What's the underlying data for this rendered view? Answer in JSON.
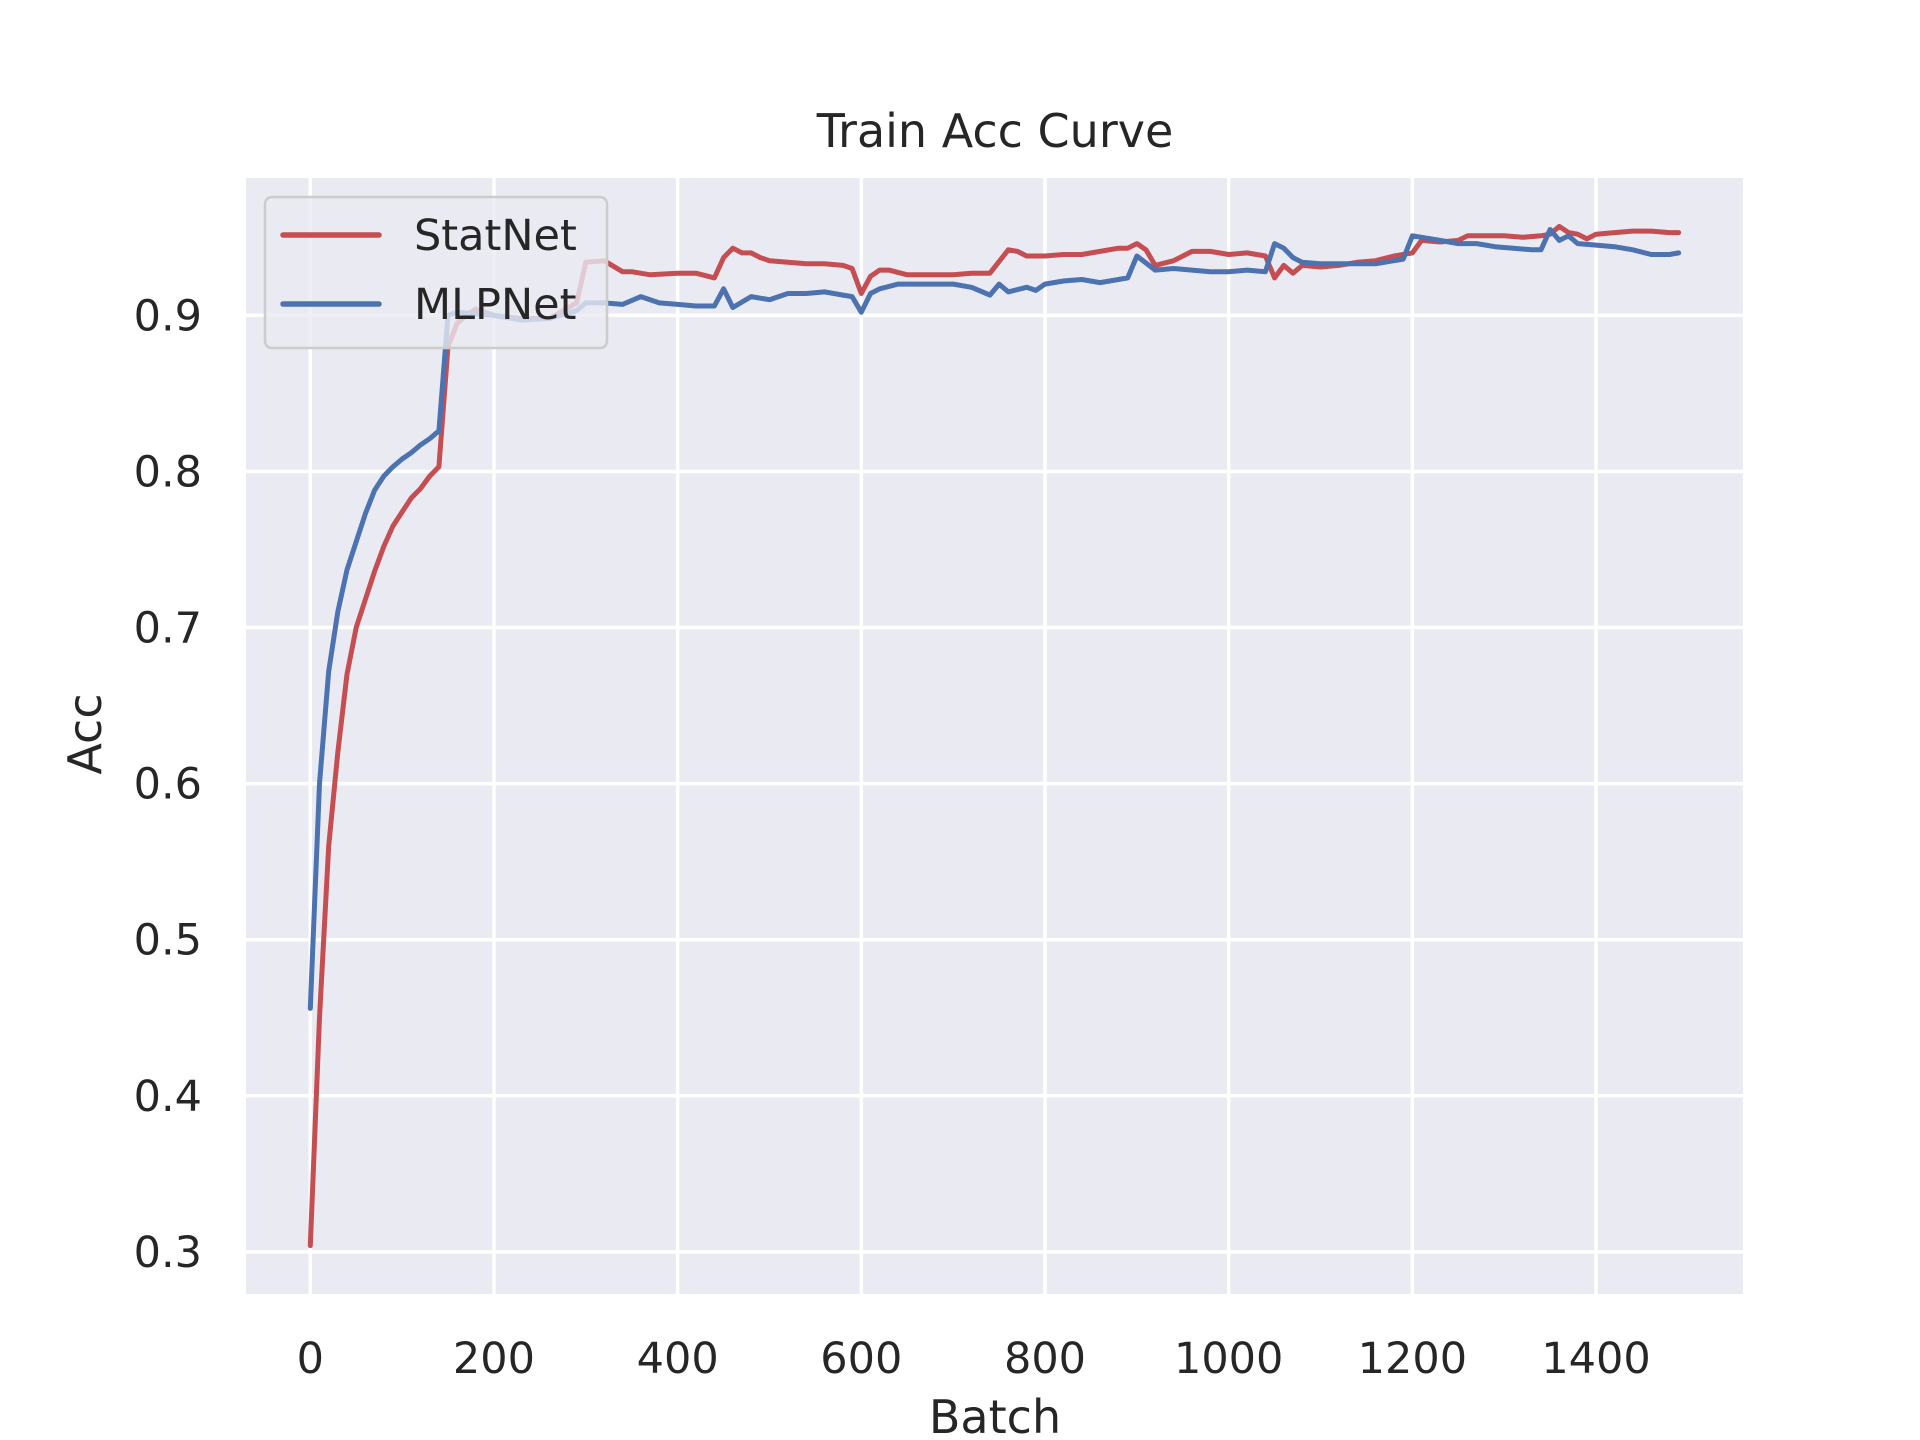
{
  "chart_data": {
    "type": "line",
    "title": "Train Acc Curve",
    "xlabel": "Batch",
    "ylabel": "Acc",
    "xlim": [
      -70,
      1560
    ],
    "ylim": [
      0.273,
      0.988
    ],
    "xticks": [
      0,
      200,
      400,
      600,
      800,
      1000,
      1200,
      1400
    ],
    "xtick_labels": [
      "0",
      "200",
      "400",
      "600",
      "800",
      "1000",
      "1200",
      "1400"
    ],
    "yticks": [
      0.3,
      0.4,
      0.5,
      0.6,
      0.7,
      0.8,
      0.9
    ],
    "ytick_labels": [
      "0.3",
      "0.4",
      "0.5",
      "0.6",
      "0.7",
      "0.8",
      "0.9"
    ],
    "grid": true,
    "legend_position": "top-left",
    "background_color": "#eaeaf2",
    "series": [
      {
        "name": "StatNet",
        "color": "#c44e52",
        "x": [
          0,
          10,
          20,
          30,
          40,
          50,
          60,
          70,
          80,
          90,
          100,
          110,
          120,
          130,
          140,
          150,
          160,
          170,
          180,
          200,
          230,
          260,
          290,
          300,
          320,
          340,
          350,
          370,
          400,
          420,
          440,
          450,
          460,
          470,
          480,
          490,
          500,
          520,
          540,
          560,
          580,
          590,
          600,
          610,
          620,
          630,
          650,
          700,
          720,
          740,
          760,
          770,
          780,
          800,
          820,
          840,
          860,
          880,
          890,
          900,
          910,
          920,
          940,
          960,
          980,
          1000,
          1020,
          1040,
          1050,
          1060,
          1070,
          1080,
          1100,
          1120,
          1140,
          1160,
          1180,
          1200,
          1210,
          1230,
          1250,
          1260,
          1280,
          1300,
          1320,
          1340,
          1350,
          1360,
          1370,
          1380,
          1390,
          1400,
          1420,
          1440,
          1460,
          1480,
          1490
        ],
        "y": [
          0.304,
          0.45,
          0.56,
          0.62,
          0.67,
          0.7,
          0.718,
          0.736,
          0.752,
          0.765,
          0.774,
          0.783,
          0.789,
          0.797,
          0.803,
          0.88,
          0.895,
          0.9,
          0.904,
          0.9,
          0.898,
          0.898,
          0.908,
          0.934,
          0.935,
          0.928,
          0.928,
          0.926,
          0.927,
          0.927,
          0.924,
          0.937,
          0.943,
          0.94,
          0.94,
          0.937,
          0.935,
          0.934,
          0.933,
          0.933,
          0.932,
          0.93,
          0.914,
          0.925,
          0.929,
          0.929,
          0.926,
          0.926,
          0.927,
          0.927,
          0.942,
          0.941,
          0.938,
          0.938,
          0.939,
          0.939,
          0.941,
          0.943,
          0.943,
          0.946,
          0.942,
          0.932,
          0.935,
          0.941,
          0.941,
          0.939,
          0.94,
          0.938,
          0.924,
          0.932,
          0.927,
          0.932,
          0.931,
          0.932,
          0.934,
          0.935,
          0.938,
          0.94,
          0.948,
          0.947,
          0.948,
          0.951,
          0.951,
          0.951,
          0.95,
          0.951,
          0.952,
          0.957,
          0.953,
          0.952,
          0.949,
          0.952,
          0.953,
          0.954,
          0.954,
          0.953,
          0.953
        ]
      },
      {
        "name": "MLPNet",
        "color": "#4c72b0",
        "x": [
          0,
          10,
          20,
          30,
          40,
          50,
          60,
          70,
          80,
          90,
          100,
          110,
          120,
          130,
          140,
          150,
          160,
          200,
          230,
          260,
          290,
          300,
          320,
          340,
          360,
          380,
          400,
          420,
          440,
          450,
          460,
          480,
          500,
          520,
          540,
          560,
          580,
          590,
          600,
          610,
          620,
          640,
          650,
          700,
          720,
          740,
          750,
          760,
          780,
          790,
          800,
          820,
          840,
          860,
          880,
          890,
          900,
          920,
          940,
          960,
          980,
          1000,
          1020,
          1040,
          1050,
          1060,
          1070,
          1080,
          1100,
          1120,
          1140,
          1160,
          1180,
          1190,
          1200,
          1210,
          1230,
          1250,
          1270,
          1290,
          1310,
          1330,
          1340,
          1350,
          1360,
          1370,
          1380,
          1400,
          1420,
          1440,
          1460,
          1480,
          1490
        ],
        "y": [
          0.456,
          0.6,
          0.672,
          0.71,
          0.737,
          0.755,
          0.773,
          0.788,
          0.797,
          0.803,
          0.808,
          0.812,
          0.817,
          0.821,
          0.826,
          0.9,
          0.902,
          0.9,
          0.897,
          0.898,
          0.903,
          0.908,
          0.908,
          0.907,
          0.912,
          0.908,
          0.907,
          0.906,
          0.906,
          0.917,
          0.905,
          0.912,
          0.91,
          0.914,
          0.914,
          0.915,
          0.913,
          0.912,
          0.902,
          0.914,
          0.917,
          0.92,
          0.92,
          0.92,
          0.918,
          0.913,
          0.92,
          0.915,
          0.918,
          0.916,
          0.92,
          0.922,
          0.923,
          0.921,
          0.923,
          0.924,
          0.938,
          0.929,
          0.93,
          0.929,
          0.928,
          0.928,
          0.929,
          0.928,
          0.946,
          0.943,
          0.937,
          0.934,
          0.933,
          0.933,
          0.933,
          0.933,
          0.935,
          0.936,
          0.951,
          0.95,
          0.948,
          0.946,
          0.946,
          0.944,
          0.943,
          0.942,
          0.942,
          0.955,
          0.948,
          0.951,
          0.946,
          0.945,
          0.944,
          0.942,
          0.939,
          0.939,
          0.94
        ]
      }
    ]
  }
}
